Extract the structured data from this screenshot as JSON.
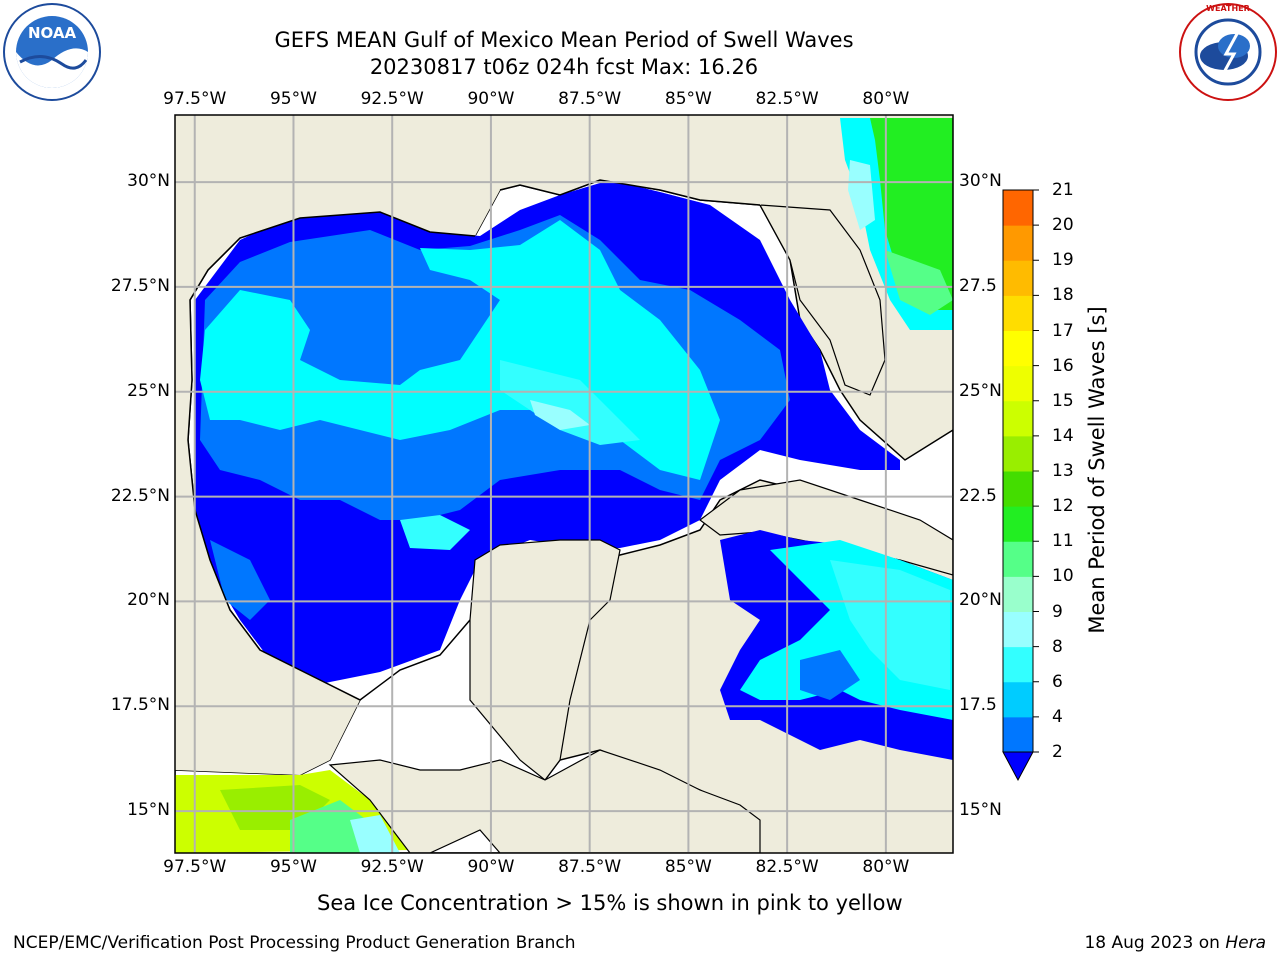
{
  "title": {
    "line1": "GEFS MEAN Gulf of Mexico Mean Period of Swell Waves",
    "line2": "20230817 t06z 024h fcst   Max: 16.26"
  },
  "logos": {
    "left": {
      "name": "noaa-logo",
      "text": "NOAA",
      "ring_text": "NATIONAL OCEANIC AND ATMOSPHERIC ADMINISTRATION · U.S. DEPARTMENT OF COMMERCE"
    },
    "right": {
      "name": "nws-logo",
      "ring_text": "NATIONAL WEATHER SERVICE"
    }
  },
  "map": {
    "lon_labels": [
      "97.5°W",
      "95°W",
      "92.5°W",
      "90°W",
      "87.5°W",
      "85°W",
      "82.5°W",
      "80°W"
    ],
    "lat_labels_left": [
      "30°N",
      "27.5°N",
      "25°N",
      "22.5°N",
      "20°N",
      "17.5°N",
      "15°N"
    ],
    "lat_labels_right": [
      "30°N",
      "27.5",
      "25°N",
      "22.5",
      "20°N",
      "17.5",
      "15°N"
    ],
    "lon_range": [
      -98,
      -78.3
    ],
    "lat_range": [
      14,
      31.6
    ],
    "land_color": "#eeecdc",
    "ocean_no_data_color": "#ffffff",
    "grid_color": "#b3b3b3"
  },
  "colorbar": {
    "label": "Mean Period of Swell Waves [s]",
    "ticks": [
      "2",
      "4",
      "6",
      "8",
      "9",
      "10",
      "11",
      "12",
      "13",
      "14",
      "15",
      "16",
      "17",
      "18",
      "19",
      "20",
      "21"
    ],
    "colors": [
      "#0077ff",
      "#00ccff",
      "#33ffff",
      "#99ffff",
      "#99ffcc",
      "#55ff88",
      "#22ee22",
      "#44dd00",
      "#99ee00",
      "#ccff00",
      "#eeff00",
      "#ffff00",
      "#ffdd00",
      "#ffbb00",
      "#ff9900",
      "#ff6600",
      "#ff3300",
      "#ff0000"
    ],
    "under_color": "#0000ff"
  },
  "caption": "Sea Ice Concentration > 15% is shown in pink to yellow",
  "footer": {
    "left": "NCEP/EMC/Verification Post Processing Product Generation Branch",
    "right_prefix": "18 Aug 2023 on ",
    "right_machine": "Hera"
  }
}
